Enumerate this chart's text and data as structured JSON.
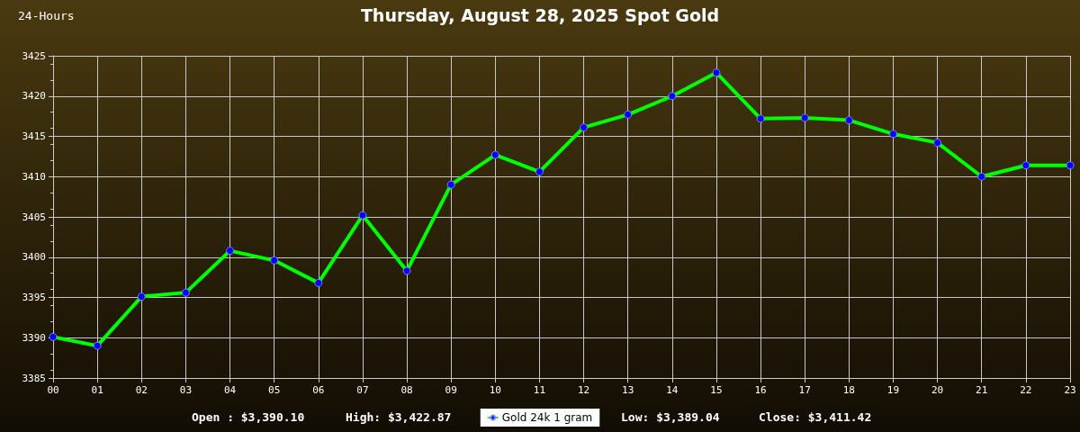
{
  "chart_data": {
    "type": "line",
    "title": "Thursday, August 28, 2025 Spot Gold",
    "categories": [
      "00",
      "01",
      "02",
      "03",
      "04",
      "05",
      "06",
      "07",
      "08",
      "09",
      "10",
      "11",
      "12",
      "13",
      "14",
      "15",
      "16",
      "17",
      "18",
      "19",
      "20",
      "21",
      "22",
      "23"
    ],
    "series": [
      {
        "name": "Gold 24k 1 gram",
        "color": "#00ff00",
        "values": [
          3390.1,
          3389.0,
          3395.1,
          3395.6,
          3400.8,
          3399.6,
          3396.8,
          3405.2,
          3398.3,
          3409.0,
          3412.7,
          3410.6,
          3416.1,
          3417.7,
          3420.0,
          3422.9,
          3417.2,
          3417.3,
          3417.0,
          3415.3,
          3414.2,
          3410.0,
          3411.4,
          3411.4
        ]
      }
    ],
    "ylim": [
      3385,
      3425
    ],
    "yticks": [
      3385,
      3390,
      3395,
      3400,
      3405,
      3410,
      3415,
      3420,
      3425
    ],
    "grid": true,
    "legend": "bottom",
    "marker": "circle",
    "line_style": "solid",
    "annotations": [
      "24-Hours",
      "Open : $3,390.10",
      "High: $3,422.87",
      "Low: $3,389.04",
      "Close: $3,411.42"
    ]
  }
}
